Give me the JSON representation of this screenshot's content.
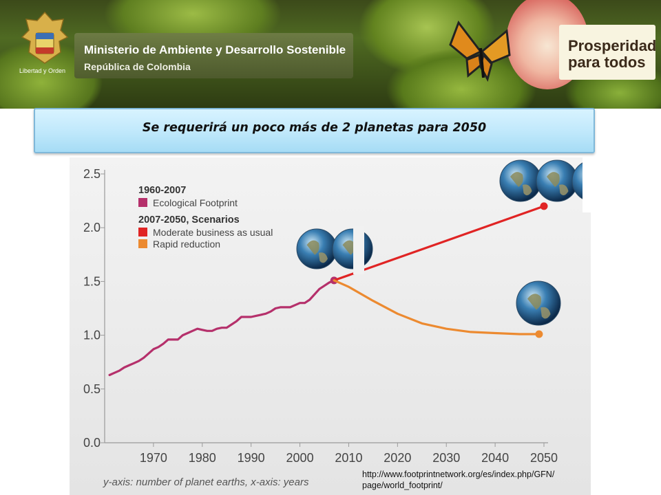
{
  "header": {
    "ministry_title": "Ministerio de Ambiente y Desarrollo Sostenible",
    "ministry_subtitle": "República de Colombia",
    "seal_text": "Libertad y Orden",
    "slogan_line1": "Prosperidad",
    "slogan_line2": "para todos"
  },
  "slide": {
    "title": "Se requerirá un poco más de 2 planetas para 2050",
    "caption": "y-axis: number of planet earths, x-axis: years",
    "source_line1": "http://www.footprintnetwork.org/es/index.php/GFN/",
    "source_line2": "page/world_footprint/"
  },
  "colors": {
    "footprint": "#b5306b",
    "moderate": "#e02424",
    "rapid": "#ec8a30"
  },
  "chart_data": {
    "type": "line",
    "xlim": [
      1960,
      2050
    ],
    "ylim": [
      0,
      2.5
    ],
    "x_ticks": [
      1970,
      1980,
      1990,
      2000,
      2010,
      2020,
      2030,
      2040,
      2050
    ],
    "y_ticks": [
      0.0,
      0.5,
      1.0,
      1.5,
      2.0,
      2.5
    ],
    "y_tick_labels": [
      "0.0",
      "0.5",
      "1.0",
      "1.5",
      "2.0",
      "2.5"
    ],
    "legend": {
      "position": "top-left",
      "group1_heading": "1960-2007",
      "group2_heading": "2007-2050, Scenarios"
    },
    "series": [
      {
        "name": "Ecological Footprint",
        "color": "#b5306b",
        "points": [
          [
            1961,
            0.63
          ],
          [
            1962,
            0.65
          ],
          [
            1963,
            0.67
          ],
          [
            1964,
            0.7
          ],
          [
            1965,
            0.72
          ],
          [
            1966,
            0.74
          ],
          [
            1967,
            0.76
          ],
          [
            1968,
            0.79
          ],
          [
            1969,
            0.83
          ],
          [
            1970,
            0.87
          ],
          [
            1971,
            0.89
          ],
          [
            1972,
            0.92
          ],
          [
            1973,
            0.96
          ],
          [
            1974,
            0.96
          ],
          [
            1975,
            0.96
          ],
          [
            1976,
            1.0
          ],
          [
            1977,
            1.02
          ],
          [
            1978,
            1.04
          ],
          [
            1979,
            1.06
          ],
          [
            1980,
            1.05
          ],
          [
            1981,
            1.04
          ],
          [
            1982,
            1.04
          ],
          [
            1983,
            1.06
          ],
          [
            1984,
            1.07
          ],
          [
            1985,
            1.07
          ],
          [
            1986,
            1.1
          ],
          [
            1987,
            1.13
          ],
          [
            1988,
            1.17
          ],
          [
            1989,
            1.17
          ],
          [
            1990,
            1.17
          ],
          [
            1991,
            1.18
          ],
          [
            1992,
            1.19
          ],
          [
            1993,
            1.2
          ],
          [
            1994,
            1.22
          ],
          [
            1995,
            1.25
          ],
          [
            1996,
            1.26
          ],
          [
            1997,
            1.26
          ],
          [
            1998,
            1.26
          ],
          [
            1999,
            1.28
          ],
          [
            2000,
            1.3
          ],
          [
            2001,
            1.3
          ],
          [
            2002,
            1.33
          ],
          [
            2003,
            1.38
          ],
          [
            2004,
            1.43
          ],
          [
            2005,
            1.46
          ],
          [
            2006,
            1.49
          ],
          [
            2007,
            1.51
          ]
        ]
      },
      {
        "name": "Moderate business as usual",
        "color": "#e02424",
        "points": [
          [
            2007,
            1.51
          ],
          [
            2050,
            2.2
          ]
        ]
      },
      {
        "name": "Rapid reduction",
        "color": "#ec8a30",
        "points": [
          [
            2007,
            1.51
          ],
          [
            2010,
            1.45
          ],
          [
            2015,
            1.32
          ],
          [
            2020,
            1.2
          ],
          [
            2025,
            1.11
          ],
          [
            2030,
            1.06
          ],
          [
            2035,
            1.03
          ],
          [
            2040,
            1.02
          ],
          [
            2045,
            1.01
          ],
          [
            2049,
            1.01
          ]
        ]
      }
    ]
  }
}
